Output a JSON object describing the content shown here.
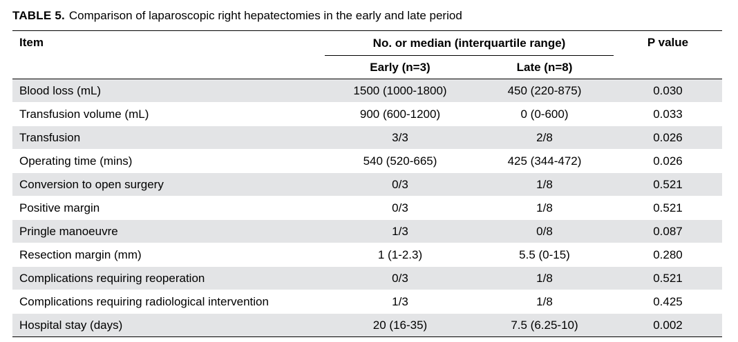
{
  "caption": {
    "label": "TABLE 5.",
    "title": "Comparison of laparoscopic right hepatectomies in the early and late period"
  },
  "table": {
    "headers": {
      "item": "Item",
      "group": "No. or median (interquartile range)",
      "early": "Early (n=3)",
      "late": "Late (n=8)",
      "p_value": "P value"
    },
    "rows": [
      {
        "item": "Blood loss (mL)",
        "early": "1500 (1000-1800)",
        "late": "450 (220-875)",
        "p": "0.030"
      },
      {
        "item": "Transfusion volume (mL)",
        "early": "900 (600-1200)",
        "late": "0 (0-600)",
        "p": "0.033"
      },
      {
        "item": "Transfusion",
        "early": "3/3",
        "late": "2/8",
        "p": "0.026"
      },
      {
        "item": "Operating time (mins)",
        "early": "540 (520-665)",
        "late": "425 (344-472)",
        "p": "0.026"
      },
      {
        "item": "Conversion to open surgery",
        "early": "0/3",
        "late": "1/8",
        "p": "0.521"
      },
      {
        "item": "Positive margin",
        "early": "0/3",
        "late": "1/8",
        "p": "0.521"
      },
      {
        "item": "Pringle manoeuvre",
        "early": "1/3",
        "late": "0/8",
        "p": "0.087"
      },
      {
        "item": "Resection margin (mm)",
        "early": "1 (1-2.3)",
        "late": "5.5 (0-15)",
        "p": "0.280"
      },
      {
        "item": "Complications requiring reoperation",
        "early": "0/3",
        "late": "1/8",
        "p": "0.521"
      },
      {
        "item": "Complications requiring radiological intervention",
        "early": "1/3",
        "late": "1/8",
        "p": "0.425"
      },
      {
        "item": "Hospital stay (days)",
        "early": "20 (16-35)",
        "late": "7.5 (6.25-10)",
        "p": "0.002"
      }
    ]
  },
  "colors": {
    "shaded_row": "#e3e4e6",
    "white_row": "#ffffff",
    "rule": "#000000"
  }
}
